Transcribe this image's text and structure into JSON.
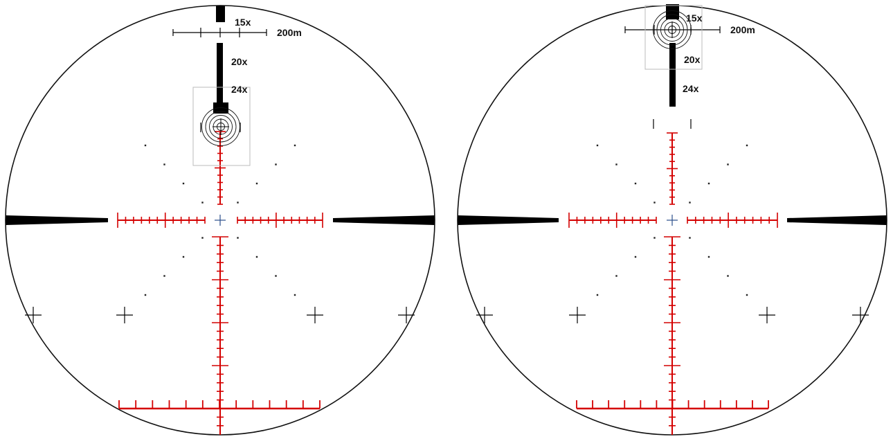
{
  "colors": {
    "background": "#ffffff",
    "ring": "#111111",
    "reticle": "#d40000",
    "black_reticle": "#000000",
    "center_cross": "#2a4e8a",
    "box_border": "#bbbbbb",
    "dots": "#222222"
  },
  "reticles": [
    {
      "id": "left",
      "labels": {
        "mag_15": "15x",
        "mag_20": "20x",
        "mag_24": "24x",
        "distance": "200m"
      }
    },
    {
      "id": "right",
      "labels": {
        "mag_15": "15x",
        "mag_20": "20x",
        "mag_24": "24x",
        "distance": "200m"
      }
    }
  ]
}
